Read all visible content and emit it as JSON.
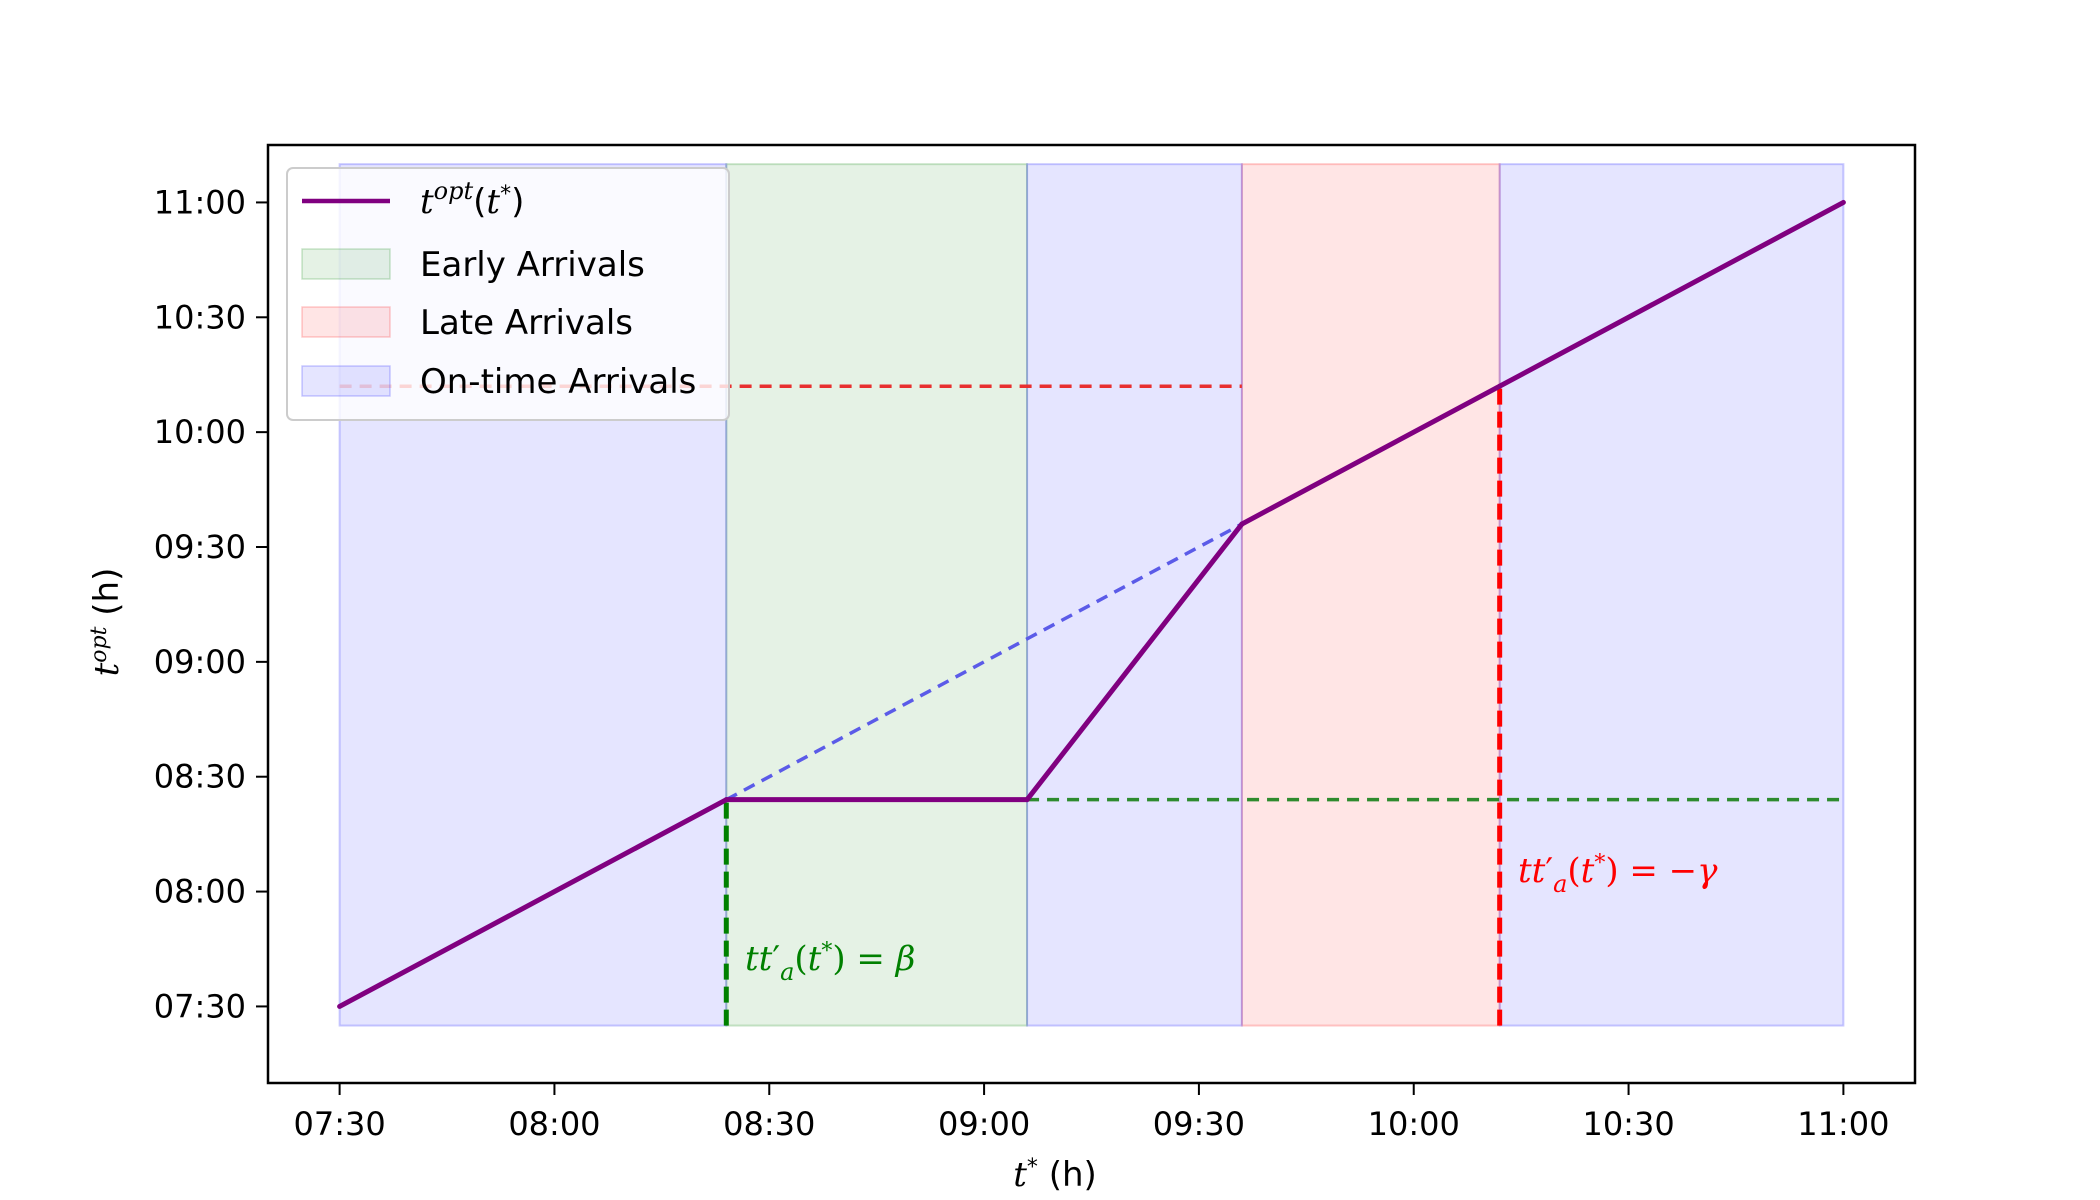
{
  "chart_data": {
    "type": "line",
    "xlabel": "t* (h)",
    "ylabel": "t^opt (h)",
    "x_ticks": [
      "07:30",
      "08:00",
      "08:30",
      "09:00",
      "09:30",
      "10:00",
      "10:30",
      "11:00"
    ],
    "y_ticks": [
      "07:30",
      "08:00",
      "08:30",
      "09:00",
      "09:30",
      "10:00",
      "10:30",
      "11:00"
    ],
    "xlim": [
      "07:20",
      "11:10"
    ],
    "ylim": [
      "07:10",
      "11:15"
    ],
    "grid": false,
    "legend_position": "top-left",
    "series": [
      {
        "name": "t^opt(t*)",
        "color": "#800080",
        "x": [
          "07:30",
          "08:24",
          "09:06",
          "09:36",
          "10:12",
          "11:00"
        ],
        "y": [
          "07:30",
          "08:24",
          "08:24",
          "09:36",
          "10:12",
          "11:00"
        ]
      }
    ],
    "regions": [
      {
        "name": "Early Arrivals",
        "color": "#008000",
        "x": [
          "08:24",
          "09:06"
        ]
      },
      {
        "name": "Late Arrivals",
        "color": "#ff0000",
        "x": [
          "09:36",
          "10:12"
        ]
      },
      {
        "name": "On-time Arrivals",
        "color": "#0000ff",
        "x": [
          [
            "07:30",
            "08:24"
          ],
          [
            "09:06",
            "09:36"
          ],
          [
            "10:12",
            "11:00"
          ]
        ]
      }
    ],
    "reference_lines": [
      {
        "style": "dashed",
        "color": "#5b5be8",
        "from": [
          "08:24",
          "08:24"
        ],
        "to": [
          "10:12",
          "10:12"
        ]
      },
      {
        "style": "dashed",
        "color": "#2e8b2e",
        "from": [
          "09:06",
          "08:24"
        ],
        "to": [
          "11:00",
          "08:24"
        ]
      },
      {
        "style": "dashed",
        "color": "#e83030",
        "from": [
          "07:30",
          "10:12"
        ],
        "to": [
          "09:36",
          "10:12"
        ]
      },
      {
        "style": "dashed",
        "color": "#008000",
        "from": [
          "08:24",
          "07:25"
        ],
        "to": [
          "08:24",
          "08:24"
        ]
      },
      {
        "style": "dashed",
        "color": "#ff0000",
        "from": [
          "10:12",
          "07:25"
        ],
        "to": [
          "10:12",
          "10:12"
        ]
      }
    ],
    "annotations": [
      {
        "text": "tt'_a(t*) = β",
        "color": "#008000"
      },
      {
        "text": "tt'_a(t*) = −γ",
        "color": "#ff0000"
      }
    ]
  }
}
